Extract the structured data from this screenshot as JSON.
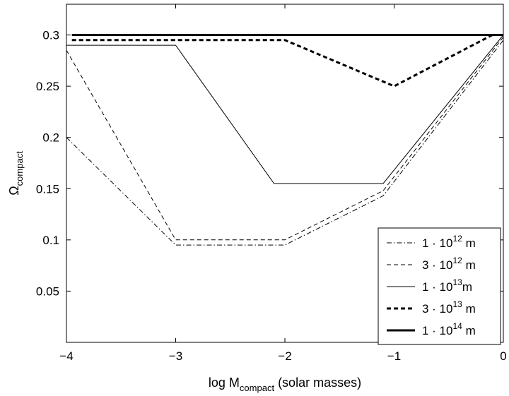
{
  "chart_data": {
    "type": "line",
    "title": "",
    "xlabel": {
      "main": "log M",
      "sub": "compact",
      "rest": " (solar masses)"
    },
    "ylabel": {
      "main": "Ω",
      "sub": "compact"
    },
    "xlim": [
      -4,
      0
    ],
    "ylim": [
      0,
      0.33
    ],
    "xticks": [
      -4,
      -3,
      -2,
      -1,
      0
    ],
    "xtick_labels": [
      "−4",
      "−3",
      "−2",
      "−1",
      "0"
    ],
    "yticks": [
      0.05,
      0.1,
      0.15,
      0.2,
      0.25,
      0.3
    ],
    "ytick_labels": [
      "0.05",
      "0.1",
      "0.15",
      "0.2",
      "0.25",
      "0.3"
    ],
    "grid": false,
    "legend_position": "bottom-right",
    "series": [
      {
        "name": "1 · 10^12 m",
        "label_base": "1 · 10",
        "label_exp": "12",
        "label_unit": " m",
        "style": "dashdot",
        "width": 1,
        "x": [
          -4,
          -3,
          -2,
          -1.1,
          0
        ],
        "y": [
          0.2,
          0.095,
          0.095,
          0.143,
          0.295
        ]
      },
      {
        "name": "3 · 10^12 m",
        "label_base": "3 · 10",
        "label_exp": "12",
        "label_unit": " m",
        "style": "dashed",
        "width": 1,
        "x": [
          -4,
          -3,
          -2,
          -1.1,
          0
        ],
        "y": [
          0.285,
          0.1,
          0.1,
          0.148,
          0.298
        ]
      },
      {
        "name": "1 · 10^13 m",
        "label_base": "1 · 10",
        "label_exp": "13",
        "label_unit": "m",
        "style": "solid",
        "width": 1,
        "x": [
          -4,
          -3,
          -2.1,
          -1.1,
          0
        ],
        "y": [
          0.29,
          0.29,
          0.155,
          0.155,
          0.3
        ]
      },
      {
        "name": "3 · 10^13 m",
        "label_base": "3 · 10",
        "label_exp": "13",
        "label_unit": " m",
        "style": "dashed",
        "width": 3,
        "x": [
          -3.95,
          -2,
          -1,
          -0.1
        ],
        "y": [
          0.295,
          0.295,
          0.25,
          0.3
        ]
      },
      {
        "name": "1 · 10^14 m",
        "label_base": "1 · 10",
        "label_exp": "14",
        "label_unit": " m",
        "style": "solid",
        "width": 3,
        "x": [
          -3.95,
          0
        ],
        "y": [
          0.3,
          0.3
        ]
      }
    ]
  }
}
